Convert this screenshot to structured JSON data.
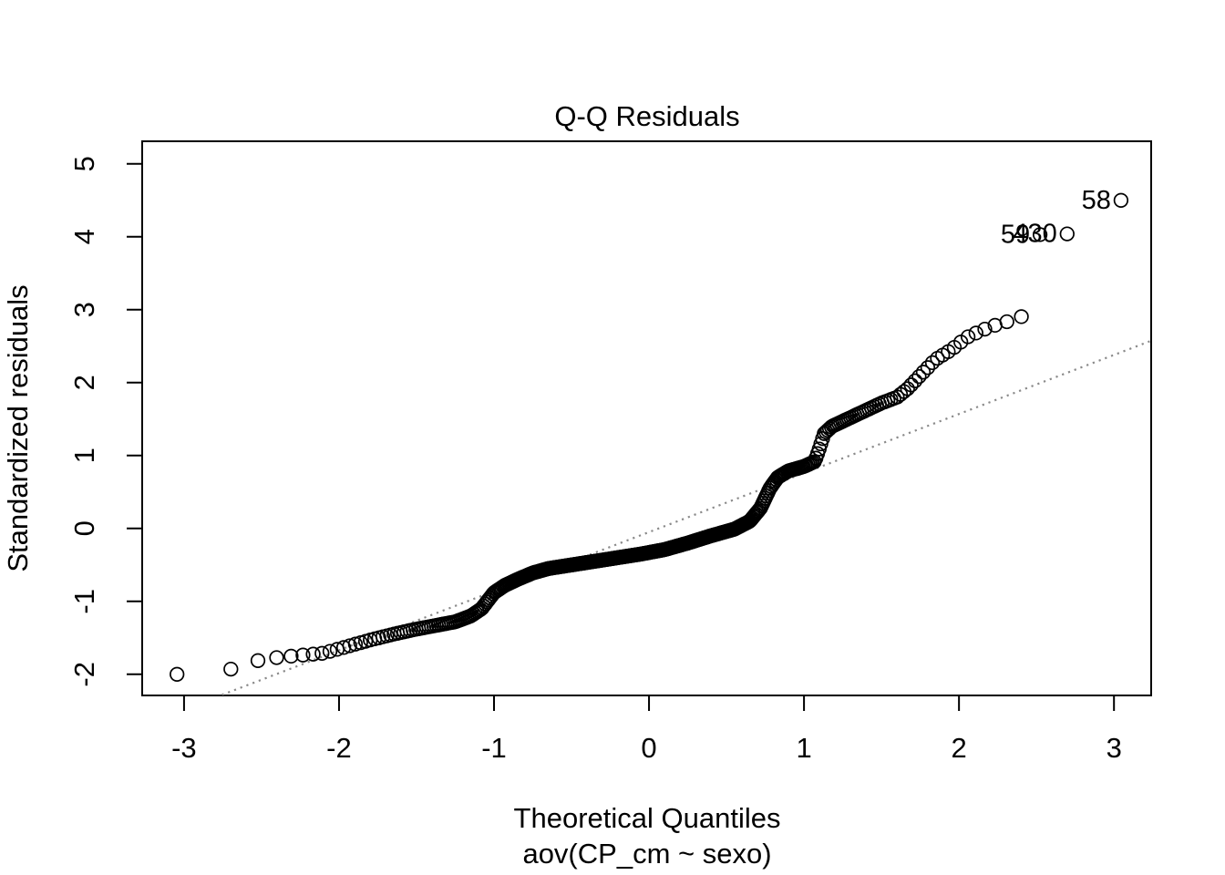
{
  "chart_data": {
    "type": "scatter",
    "subtype": "qq-plot",
    "title": "Q-Q Residuals",
    "xlabel": "Theoretical Quantiles",
    "xlabel_sub": "aov(CP_cm ~ sexo)",
    "ylabel": "Standardized residuals",
    "x_ticks": [
      -3,
      -2,
      -1,
      0,
      1,
      2,
      3
    ],
    "y_ticks": [
      -2,
      -1,
      0,
      1,
      2,
      3,
      4,
      5
    ],
    "xlim": [
      -3.27,
      3.24
    ],
    "ylim": [
      -2.29,
      5.31
    ],
    "grid": false,
    "legend": "none",
    "n_points": 430,
    "point_style": {
      "shape": "open-circle",
      "color": "#000000"
    },
    "reference_line": {
      "style": "dotted",
      "color": "#8a8a8a",
      "slope": 0.81,
      "intercept": -0.05
    },
    "curve_knots": [
      [
        -3.04,
        -2.0
      ],
      [
        -2.7,
        -1.93
      ],
      [
        -2.52,
        -1.81
      ],
      [
        -2.4,
        -1.77
      ],
      [
        -2.25,
        -1.74
      ],
      [
        -2.1,
        -1.71
      ],
      [
        -1.95,
        -1.62
      ],
      [
        -1.8,
        -1.53
      ],
      [
        -1.65,
        -1.45
      ],
      [
        -1.5,
        -1.38
      ],
      [
        -1.35,
        -1.32
      ],
      [
        -1.25,
        -1.28
      ],
      [
        -1.15,
        -1.2
      ],
      [
        -1.08,
        -1.1
      ],
      [
        -1.0,
        -0.88
      ],
      [
        -0.93,
        -0.78
      ],
      [
        -0.85,
        -0.7
      ],
      [
        -0.75,
        -0.61
      ],
      [
        -0.65,
        -0.55
      ],
      [
        -0.5,
        -0.5
      ],
      [
        -0.35,
        -0.45
      ],
      [
        -0.2,
        -0.4
      ],
      [
        -0.05,
        -0.35
      ],
      [
        0.1,
        -0.29
      ],
      [
        0.25,
        -0.2
      ],
      [
        0.4,
        -0.1
      ],
      [
        0.55,
        -0.01
      ],
      [
        0.65,
        0.1
      ],
      [
        0.72,
        0.28
      ],
      [
        0.78,
        0.55
      ],
      [
        0.83,
        0.7
      ],
      [
        0.9,
        0.79
      ],
      [
        1.0,
        0.85
      ],
      [
        1.07,
        0.92
      ],
      [
        1.1,
        1.1
      ],
      [
        1.13,
        1.3
      ],
      [
        1.18,
        1.4
      ],
      [
        1.25,
        1.47
      ],
      [
        1.35,
        1.57
      ],
      [
        1.5,
        1.72
      ],
      [
        1.6,
        1.8
      ],
      [
        1.67,
        1.92
      ],
      [
        1.75,
        2.1
      ],
      [
        1.85,
        2.32
      ],
      [
        1.95,
        2.45
      ],
      [
        2.05,
        2.62
      ],
      [
        2.15,
        2.72
      ],
      [
        2.25,
        2.8
      ],
      [
        2.35,
        2.86
      ],
      [
        2.4,
        2.88
      ],
      [
        2.52,
        4.03
      ],
      [
        2.7,
        4.04
      ],
      [
        3.04,
        4.5
      ]
    ],
    "labeled_points": [
      {
        "label": "59",
        "x": 2.52,
        "y": 4.03
      },
      {
        "label": "430",
        "x": 2.7,
        "y": 4.04
      },
      {
        "label": "58",
        "x": 3.04,
        "y": 4.5
      }
    ]
  }
}
